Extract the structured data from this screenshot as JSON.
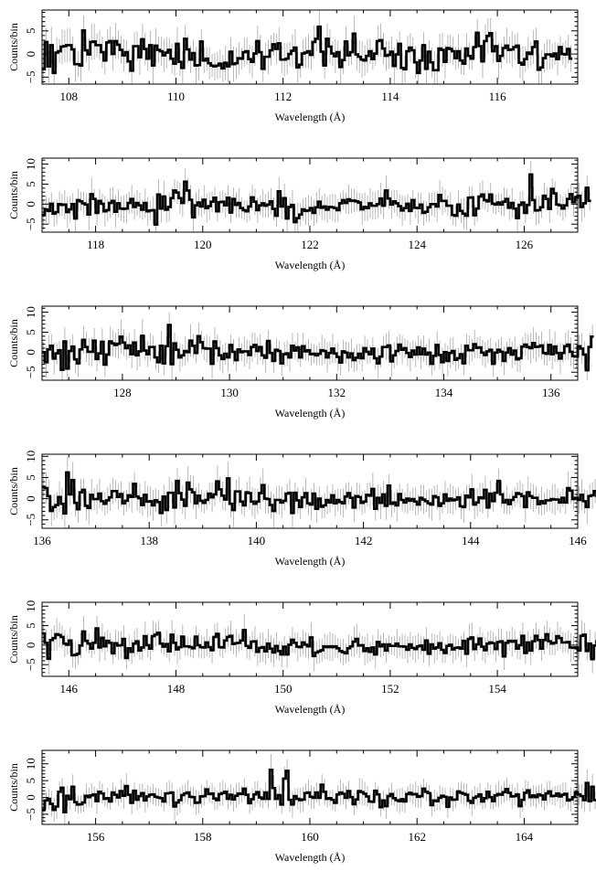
{
  "chart_data": [
    {
      "type": "line",
      "xlabel": "Wavelength (Å)",
      "ylabel": "Counts/bin",
      "xlim": [
        107.5,
        117.5
      ],
      "ylim": [
        -6.5,
        9.5
      ],
      "xticks": [
        "108",
        "110",
        "112",
        "114",
        "116"
      ],
      "yticks": [
        "−5",
        "0",
        "5"
      ],
      "bin_width": 0.05,
      "step_values": [
        -3.3,
        2.6,
        -2.7,
        1.9,
        -4.1,
        0.3,
        0.6,
        1.6,
        1.7,
        1.9,
        1.9,
        1.0,
        -2.2,
        -2.2,
        -2.5,
        5.1,
        0.8,
        -0.1,
        2.6,
        2.7,
        1.9,
        1.9,
        0.4,
        -1.4,
        2.5,
        2.8,
        0.0,
        2.8,
        2.0,
        0.9,
        -0.3,
        0.4,
        -1.6,
        -3.6,
        1.7,
        1.7,
        -0.7,
        3.2,
        1.1,
        -1.0,
        1.9,
        -2.5,
        1.8,
        0.9,
        0.6,
        -0.3,
        0.3,
        0.9,
        -1.0,
        -2.1,
        2.2,
        -1.7,
        -3.0,
        3.3,
        1.0,
        -1.2,
        0.2,
        -2.5,
        -2.4,
        2.7,
        -1.4,
        -1.0,
        -2.0,
        -2.5,
        -2.7,
        -2.5,
        -2.1,
        -3.1,
        -1.9,
        -2.7,
        0.5,
        -2.2,
        -2.0,
        -0.9,
        -1.0,
        0.4,
        0.6,
        -1.1,
        -1.7,
        0.1,
        2.8,
        0.4,
        -3.2,
        -0.6,
        -0.6,
        0.8,
        2.1,
        1.1,
        2.3,
        -1.2,
        -1.2,
        -1.0,
        0.0,
        0.7,
        1.4,
        -2.9,
        -2.3,
        0.1,
        0.3,
        0.6,
        -0.2,
        2.6,
        3.3,
        5.9,
        0.5,
        -2.5,
        3.3,
        1.6,
        0.1,
        -0.5,
        0.4,
        -2.8,
        -1.3,
        2.7,
        -0.3,
        0.4,
        4.4,
        -0.1,
        -0.6,
        -1.2,
        -1.4,
        -0.4,
        0.6,
        -1.1,
        0.1,
        2.8,
        3.0,
        1.2,
        -0.4,
        -0.2,
        0.5,
        -2.6,
        -0.1,
        2.2,
        -3.0,
        -3.3,
        0.6,
        1.4,
        0.8,
        -1.8,
        -4.1,
        -1.4,
        1.9,
        -3.2,
        0.5,
        -1.8,
        -3.5,
        -3.5,
        1.2,
        0.9,
        -1.7,
        1.3,
        1.1,
        0.6,
        -0.9,
        0.6,
        -1.4,
        -2.1,
        1.2,
        -0.4,
        -1.0,
        1.5,
        4.6,
        1.7,
        -1.6,
        2.8,
        3.9,
        4.5,
        0.6,
        1.7,
        -1.5,
        -0.4,
        1.3,
        1.8,
        0.9,
        1.0,
        1.5,
        1.8,
        -1.9,
        -2.3,
        -1.1,
        0.3,
        0.0,
        1.5,
        2.7,
        -3.4,
        -2.9,
        -0.9,
        -0.1,
        -0.1,
        -0.5,
        0.1,
        -1.1,
        1.5,
        0.0,
        -0.1,
        1.1,
        -1.0
      ]
    },
    {
      "type": "line",
      "xlabel": "Wavelength (Å)",
      "ylabel": "Counts/bin",
      "xlim": [
        117.0,
        127.0
      ],
      "ylim": [
        -7.0,
        11.5
      ],
      "xticks": [
        "118",
        "120",
        "122",
        "124",
        "126"
      ],
      "yticks": [
        "−5",
        "0",
        "5",
        "10"
      ],
      "bin_width": 0.05,
      "step_values": [
        -2.7,
        -1.3,
        -1.7,
        0.1,
        -2.4,
        -2.0,
        0.0,
        -0.2,
        -0.1,
        -2.0,
        -1.3,
        0.0,
        -3.6,
        1.0,
        0.7,
        0.2,
        -0.1,
        -2.6,
        2.5,
        1.3,
        -2.2,
        0.8,
        0.1,
        -1.8,
        -1.5,
        0.3,
        0.8,
        -1.9,
        0.2,
        -1.1,
        -1.2,
        -1.1,
        0.3,
        1.3,
        -0.7,
        0.3,
        -0.3,
        -1.4,
        0.3,
        -1.8,
        -1.6,
        -1.5,
        -5.1,
        2.4,
        -1.1,
        1.9,
        -1.4,
        -0.7,
        1.5,
        3.4,
        2.9,
        1.5,
        0.3,
        5.6,
        3.4,
        1.1,
        -3.3,
        -0.3,
        0.4,
        -0.6,
        1.1,
        -1.0,
        -0.5,
        0.6,
        1.6,
        -1.8,
        0.5,
        0.6,
        -0.3,
        1.6,
        -2.1,
        1.3,
        -0.2,
        0.3,
        -1.0,
        -1.5,
        -1.8,
        -0.6,
        1.7,
        0.6,
        -1.5,
        -0.3,
        0.2,
        -0.4,
        -0.1,
        0.7,
        -1.2,
        -2.9,
        3.2,
        -0.6,
        1.5,
        -3.6,
        -0.7,
        -0.2,
        -4.5,
        -3.5,
        -2.6,
        -1.3,
        -1.7,
        -1.6,
        -1.0,
        -2.2,
        -0.8,
        0.6,
        -0.9,
        -0.6,
        -1.4,
        -0.7,
        -0.8,
        -1.0,
        -1.5,
        0.2,
        1.0,
        0.3,
        1.2,
        0.8,
        0.9,
        0.7,
        0.4,
        -1.3,
        -0.7,
        -1.0,
        0.2,
        -0.4,
        -0.4,
        0.0,
        1.4,
        -0.4,
        3.4,
        1.4,
        -0.1,
        0.7,
        0.2,
        -0.5,
        -1.6,
        -1.0,
        0.1,
        -1.7,
        1.0,
        -0.9,
        -1.0,
        -0.1,
        -2.2,
        -1.9,
        -0.8,
        0.0,
        0.0,
        -0.6,
        2.3,
        0.8,
        0.8,
        -0.4,
        -0.4,
        -2.7,
        -2.9,
        -0.1,
        -1.7,
        -2.4,
        -2.9,
        1.6,
        1.7,
        -2.8,
        -1.1,
        1.9,
        2.4,
        1.0,
        0.7,
        2.4,
        0.1,
        -0.1,
        0.4,
        -0.1,
        0.6,
        1.3,
        -0.9,
        0.3,
        -1.1,
        -3.5,
        -0.2,
        0.4,
        -2.2,
        -0.2,
        7.4,
        1.0,
        -1.6,
        -1.5,
        -0.8,
        2.1,
        1.3,
        -1.2,
        3.8,
        2.7,
        -0.1,
        -0.3,
        -1.1,
        -0.3,
        1.3,
        2.5,
        0.5,
        1.6,
        2.1,
        -0.7,
        0.2,
        4.1,
        0.8
      ]
    },
    {
      "type": "line",
      "xlabel": "Wavelength (Å)",
      "ylabel": "Counts/bin",
      "xlim": [
        126.5,
        136.5
      ],
      "ylim": [
        -7.0,
        11.5
      ],
      "xticks": [
        "128",
        "130",
        "132",
        "134",
        "136"
      ],
      "yticks": [
        "−5",
        "0",
        "5",
        "10"
      ],
      "bin_width": 0.05,
      "step_values": [
        0.0,
        -2.5,
        0.7,
        1.6,
        -1.6,
        -0.3,
        0.5,
        -4.4,
        2.7,
        -4.1,
        0.3,
        1.4,
        -1.8,
        -2.8,
        0.7,
        3.1,
        1.3,
        0.1,
        0.1,
        2.9,
        -1.7,
        -0.3,
        2.6,
        -3.1,
        -0.6,
        2.7,
        2.2,
        1.8,
        2.1,
        3.9,
        2.4,
        1.0,
        1.7,
        -0.5,
        2.4,
        -0.8,
        0.2,
        4.1,
        0.4,
        -0.5,
        1.3,
        1.3,
        -1.3,
        -2.5,
        1.6,
        -2.8,
        1.5,
        6.8,
        -3.0,
        2.2,
        0.6,
        -1.3,
        -0.8,
        0.3,
        0.0,
        2.9,
        1.6,
        -0.2,
        4.0,
        2.5,
        1.0,
        0.9,
        0.9,
        -2.9,
        2.7,
        1.0,
        -0.8,
        -1.7,
        -0.4,
        -1.3,
        1.8,
        0.1,
        -2.0,
        0.7,
        0.0,
        0.2,
        0.2,
        -0.7,
        1.3,
        1.8,
        0.3,
        1.3,
        -0.8,
        -1.4,
        2.8,
        -0.2,
        -2.2,
        0.6,
        0.3,
        -2.8,
        -0.5,
        -0.3,
        -1.3,
        1.6,
        0.4,
        1.2,
        -1.3,
        1.5,
        0.2,
        0.5,
        -0.5,
        -0.4,
        -0.8,
        -0.4,
        0.5,
        0.3,
        -1.3,
        -0.2,
        0.9,
        -0.3,
        -1.2,
        -2.6,
        0.2,
        -0.1,
        -1.3,
        -0.3,
        -2.0,
        -1.4,
        -0.4,
        -1.5,
        1.0,
        0.1,
        -0.5,
        0.9,
        -1.5,
        -2.8,
        -1.1,
        1.3,
        1.3,
        1.7,
        -2.3,
        -0.8,
        0.3,
        1.9,
        0.6,
        1.0,
        -0.2,
        -1.2,
        0.4,
        -0.6,
        1.2,
        -0.5,
        0.9,
        -0.6,
        -0.1,
        -2.9,
        -0.9,
        1.8,
        -0.7,
        -2.5,
        0.0,
        -2.2,
        -0.2,
        0.3,
        -1.9,
        -1.5,
        -0.5,
        -2.8,
        1.6,
        0.5,
        0.5,
        2.0,
        1.1,
        1.2,
        -0.1,
        -0.7,
        0.2,
        0.6,
        -2.9,
        -0.1,
        0.6,
        0.1,
        -2.2,
        -0.1,
        1.0,
        -0.6,
        0.4,
        -1.8,
        -1.5,
        1.4,
        1.9,
        1.3,
        1.0,
        2.3,
        1.3,
        1.4,
        1.7,
        -0.2,
        -0.4,
        1.8,
        -0.5,
        1.4,
        -0.2,
        -1.6,
        -0.2,
        1.5,
        1.9,
        0.1,
        -1.0,
        -1.1,
        1.5,
        0.9,
        -0.6,
        -4.5,
        1.3,
        3.9
      ]
    },
    {
      "type": "line",
      "xlabel": "Wavelength (Å)",
      "ylabel": "Counts/bin",
      "xlim": [
        136.0,
        146.0
      ],
      "ylim": [
        -7.0,
        10.5
      ],
      "xticks": [
        "136",
        "138",
        "140",
        "142",
        "144",
        "146"
      ],
      "yticks": [
        "−5",
        "0",
        "5",
        "10"
      ],
      "bin_width": 0.05,
      "step_values": [
        2.7,
        2.5,
        0.6,
        -2.9,
        -2.0,
        -1.5,
        0.4,
        -1.2,
        -3.5,
        6.2,
        1.0,
        4.4,
        -1.0,
        -2.5,
        1.5,
        2.1,
        -1.7,
        -2.2,
        0.9,
        -0.1,
        -0.1,
        1.2,
        -0.6,
        -1.2,
        -0.4,
        0.3,
        1.8,
        1.8,
        0.4,
        1.1,
        -1.1,
        -0.5,
        0.8,
        0.4,
        3.5,
        0.5,
        0.1,
        -1.5,
        0.9,
        -0.7,
        -0.6,
        -1.6,
        -0.4,
        -0.8,
        -3.4,
        0.5,
        -2.7,
        1.4,
        1.4,
        -2.1,
        4.2,
        1.3,
        -0.2,
        -1.7,
        3.8,
        2.2,
        1.5,
        -1.1,
        0.7,
        -0.5,
        -1.0,
        -0.3,
        1.2,
        0.3,
        1.0,
        4.1,
        2.2,
        0.7,
        -0.2,
        4.8,
        -1.2,
        -2.7,
        1.7,
        1.7,
        -0.7,
        -1.6,
        1.5,
        1.3,
        -0.7,
        -1.2,
        -0.7,
        1.3,
        3.2,
        0.0,
        -0.1,
        -1.5,
        -2.9,
        -0.3,
        -0.3,
        -0.9,
        -0.5,
        1.2,
        1.4,
        -3.4,
        1.4,
        -0.4,
        -2.0,
        0.3,
        1.3,
        -1.1,
        -1.4,
        1.2,
        -2.4,
        0.0,
        -1.9,
        -1.6,
        -0.3,
        -0.9,
        0.8,
        -1.1,
        -0.3,
        -0.8,
        -1.1,
        0.5,
        1.3,
        0.2,
        -2.1,
        0.6,
        0.4,
        -1.0,
        -0.7,
        0.9,
        0.7,
        2.3,
        -2.4,
        0.2,
        -1.0,
        1.0,
        -1.7,
        3.1,
        -1.2,
        -0.9,
        -1.6,
        1.1,
        -0.3,
        -0.9,
        0.0,
        -0.5,
        -0.1,
        -0.7,
        -1.4,
        0.2,
        -0.2,
        -0.6,
        -1.1,
        -1.4,
        0.6,
        0.3,
        -1.7,
        -1.1,
        1.0,
        -0.5,
        0.0,
        -0.4,
        -0.2,
        0.3,
        -1.8,
        -2.0,
        0.7,
        0.3,
        2.2,
        -1.4,
        -0.9,
        0.3,
        0.1,
        2.1,
        -2.1,
        1.2,
        -0.6,
        1.4,
        4.2,
        1.0,
        -0.9,
        -0.3,
        -1.3,
        -0.3,
        0.4,
        1.3,
        1.1,
        0.6,
        -2.0,
        1.5,
        0.6,
        0.2,
        0.2,
        -1.3,
        -0.6,
        -1.1,
        -0.4,
        -0.4,
        -0.1,
        -0.2,
        -0.2,
        -0.9,
        0.2,
        -0.9,
        2.5,
        1.9,
        -0.1,
        0.2,
        -0.3,
        0.9,
        -0.6,
        -2.0,
        0.6,
        0.8,
        1.8,
        0.6,
        -0.2,
        -1.5
      ]
    },
    {
      "type": "line",
      "xlabel": "Wavelength (Å)",
      "ylabel": "Counts/bin",
      "xlim": [
        145.5,
        155.5
      ],
      "ylim": [
        -8.0,
        11.0
      ],
      "xticks": [
        "146",
        "148",
        "150",
        "152",
        "154"
      ],
      "yticks": [
        "−5",
        "0",
        "5",
        "10"
      ],
      "bin_width": 0.05,
      "step_values": [
        3.0,
        0.6,
        -3.5,
        1.3,
        1.8,
        2.8,
        2.6,
        2.1,
        0.4,
        0.1,
        1.2,
        -2.6,
        -2.5,
        -2.2,
        -0.1,
        3.5,
        1.1,
        0.4,
        -0.9,
        0.6,
        4.3,
        -0.6,
        1.9,
        -0.3,
        1.1,
        0.6,
        -2.1,
        0.5,
        -0.1,
        0.0,
        1.6,
        -3.3,
        -0.8,
        -1.7,
        0.4,
        1.0,
        -1.4,
        -0.6,
        2.3,
        0.0,
        -0.9,
        2.3,
        2.7,
        3.2,
        0.4,
        -0.4,
        0.3,
        -1.6,
        2.7,
        0.6,
        -1.1,
        -0.5,
        2.2,
        -0.3,
        -0.3,
        -0.5,
        -0.8,
        2.2,
        0.0,
        -0.5,
        -0.6,
        0.7,
        -0.5,
        -1.3,
        2.1,
        2.9,
        -0.5,
        -0.6,
        1.2,
        2.1,
        2.4,
        0.3,
        0.5,
        0.6,
        1.2,
        3.9,
        -0.2,
        -0.7,
        0.9,
        1.0,
        -1.7,
        -0.7,
        -0.5,
        -1.6,
        0.4,
        -0.9,
        -1.9,
        -0.2,
        -1.5,
        -2.4,
        -0.4,
        -2.4,
        0.1,
        1.4,
        0.6,
        -0.4,
        -0.5,
        0.7,
        0.1,
        -0.3,
        2.0,
        -2.8,
        -1.9,
        -1.6,
        -1.3,
        -0.3,
        -0.5,
        -0.3,
        -0.5,
        -0.3,
        -0.8,
        -1.5,
        -1.8,
        -2.1,
        -0.8,
        -0.3,
        0.9,
        1.6,
        -0.1,
        0.0,
        -1.5,
        -0.8,
        -1.7,
        -0.6,
        -2.4,
        0.8,
        -0.3,
        0.2,
        -1.4,
        0.2,
        -0.2,
        -0.2,
        0.4,
        -0.3,
        -0.3,
        -0.4,
        -1.2,
        0.2,
        -0.7,
        -1.0,
        -0.3,
        -0.1,
        -1.2,
        1.2,
        -2.2,
        0.2,
        -0.9,
        -0.6,
        0.5,
        -1.2,
        -2.0,
        -0.2,
        0.1,
        -1.1,
        -0.7,
        -0.6,
        -0.9,
        1.1,
        -2.2,
        1.6,
        2.0,
        -1.0,
        0.2,
        1.7,
        -0.4,
        -1.3,
        0.4,
        0.7,
        0.5,
        -1.0,
        0.8,
        1.0,
        -2.9,
        0.6,
        1.1,
        0.9,
        1.1,
        -0.9,
        0.0,
        2.4,
        -2.0,
        0.7,
        -1.4,
        1.0,
        2.4,
        1.3,
        -0.9,
        1.3,
        2.8,
        1.0,
        0.4,
        0.6,
        2.3,
        1.8,
        0.7,
        0.7,
        0.8,
        -0.6,
        -0.7,
        -0.6,
        -1.4,
        2.4,
        2.7,
        -1.5,
        0.4,
        -3.6,
        -0.1,
        1.0
      ]
    },
    {
      "type": "line",
      "xlabel": "Wavelength (Å)",
      "ylabel": "Counts/bin",
      "xlim": [
        155.0,
        165.0
      ],
      "ylim": [
        -8.0,
        14.0
      ],
      "xticks": [
        "156",
        "158",
        "160",
        "162",
        "164"
      ],
      "yticks": [
        "−5",
        "0",
        "5",
        "10"
      ],
      "bin_width": 0.05,
      "step_values": [
        -3.6,
        -0.9,
        -0.4,
        -1.9,
        -3.7,
        -2.7,
        1.7,
        2.9,
        -4.4,
        0.5,
        -0.5,
        3.2,
        -1.4,
        -2.1,
        -2.0,
        -1.5,
        0.5,
        0.1,
        0.6,
        0.9,
        -1.1,
        1.7,
        1.2,
        -0.4,
        -0.2,
        -1.2,
        1.5,
        0.8,
        0.0,
        1.9,
        0.5,
        3.4,
        0.8,
        -1.6,
        2.0,
        -0.7,
        0.4,
        1.3,
        -0.9,
        0.3,
        0.8,
        0.9,
        0.2,
        0.0,
        -0.2,
        -1.2,
        1.2,
        1.3,
        1.5,
        -2.7,
        -1.5,
        -0.8,
        0.7,
        1.2,
        1.5,
        0.2,
        0.1,
        -1.6,
        -1.5,
        0.3,
        0.4,
        2.4,
        1.0,
        1.2,
        -0.3,
        -0.8,
        1.0,
        1.3,
        1.7,
        -0.4,
        0.8,
        -0.6,
        0.5,
        1.2,
        1.0,
        2.6,
        0.8,
        -1.7,
        -0.5,
        0.9,
        1.6,
        0.0,
        -0.4,
        1.5,
        -0.4,
        8.2,
        2.8,
        -0.4,
        0.7,
        -2.1,
        5.6,
        7.9,
        -0.7,
        -2.1,
        0.4,
        -0.4,
        -0.8,
        -0.6,
        1.3,
        1.5,
        0.2,
        -0.1,
        1.5,
        -0.1,
        3.8,
        1.7,
        -0.4,
        -0.2,
        -0.7,
        -1.6,
        0.9,
        1.5,
        1.1,
        -0.1,
        1.9,
        0.1,
        -2.0,
        -0.6,
        1.9,
        1.6,
        1.1,
        0.3,
        -1.2,
        -1.3,
        2.0,
        0.9,
        -2.9,
        -0.9,
        -2.6,
        0.4,
        1.0,
        -0.2,
        -0.8,
        -1.1,
        -0.5,
        -1.2,
        1.0,
        1.4,
        0.9,
        1.0,
        0.2,
        0.4,
        2.6,
        1.7,
        1.3,
        -2.3,
        -0.9,
        -1.1,
        -0.1,
        0.5,
        0.2,
        -2.8,
        0.0,
        -0.7,
        -0.6,
        1.8,
        1.4,
        1.1,
        0.8,
        -1.0,
        -1.6,
        -0.1,
        0.3,
        0.9,
        -1.2,
        -0.2,
        1.7,
        0.1,
        -1.1,
        0.6,
        1.0,
        0.8,
        1.6,
        2.5,
        1.4,
        0.3,
        0.4,
        0.9,
        -2.6,
        -0.7,
        1.4,
        2.1,
        0.1,
        0.6,
        0.1,
        0.9,
        0.6,
        -0.6,
        1.2,
        1.8,
        0.4,
        0.5,
        1.2,
        0.3,
        0.8,
        1.1,
        -0.9,
        -0.6,
        0.1,
        1.5,
        0.9,
        0.4,
        -0.8,
        4.3,
        -1.1,
        3.2,
        -0.8
      ]
    }
  ]
}
